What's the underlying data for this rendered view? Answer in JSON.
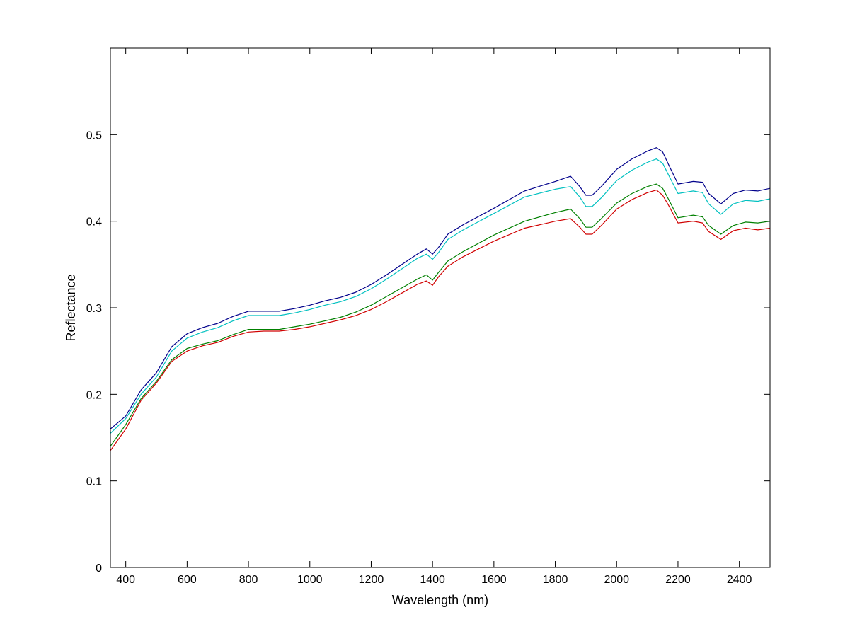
{
  "chart_data": {
    "type": "line",
    "title": "",
    "xlabel": "Wavelength (nm)",
    "ylabel": "Reflectance",
    "xlim": [
      350,
      2500
    ],
    "ylim": [
      0,
      0.6
    ],
    "x_ticks": [
      400,
      600,
      800,
      1000,
      1200,
      1400,
      1600,
      1800,
      2000,
      2200,
      2400
    ],
    "x_tick_labels": [
      "400",
      "600",
      "800",
      "1000",
      "1200",
      "1400",
      "1600",
      "1800",
      "2000",
      "2200",
      "2400"
    ],
    "y_ticks": [
      0,
      0.1,
      0.2,
      0.3,
      0.4,
      0.5
    ],
    "y_tick_labels": [
      "0",
      "0.1",
      "0.2",
      "0.3",
      "0.4",
      "0.5"
    ],
    "grid": false,
    "legend": "none",
    "x": [
      350,
      400,
      450,
      500,
      550,
      600,
      650,
      700,
      750,
      800,
      850,
      900,
      950,
      1000,
      1050,
      1100,
      1150,
      1200,
      1250,
      1300,
      1350,
      1380,
      1400,
      1420,
      1450,
      1500,
      1600,
      1700,
      1800,
      1850,
      1880,
      1900,
      1920,
      1950,
      2000,
      2050,
      2100,
      2130,
      2150,
      2170,
      2200,
      2250,
      2280,
      2300,
      2340,
      2380,
      2420,
      2460,
      2500
    ],
    "series": [
      {
        "color": "#00008B",
        "values": [
          0.16,
          0.175,
          0.205,
          0.225,
          0.255,
          0.27,
          0.277,
          0.282,
          0.29,
          0.296,
          0.296,
          0.296,
          0.299,
          0.303,
          0.308,
          0.312,
          0.318,
          0.327,
          0.338,
          0.35,
          0.362,
          0.368,
          0.362,
          0.37,
          0.385,
          0.396,
          0.415,
          0.435,
          0.446,
          0.452,
          0.44,
          0.43,
          0.43,
          0.44,
          0.46,
          0.472,
          0.481,
          0.485,
          0.48,
          0.465,
          0.443,
          0.446,
          0.445,
          0.432,
          0.42,
          0.432,
          0.436,
          0.435,
          0.438
        ]
      },
      {
        "color": "#00C0C0",
        "values": [
          0.155,
          0.172,
          0.2,
          0.22,
          0.25,
          0.265,
          0.272,
          0.277,
          0.285,
          0.291,
          0.291,
          0.291,
          0.294,
          0.298,
          0.303,
          0.307,
          0.313,
          0.322,
          0.333,
          0.345,
          0.357,
          0.362,
          0.356,
          0.364,
          0.379,
          0.39,
          0.409,
          0.428,
          0.437,
          0.44,
          0.428,
          0.417,
          0.417,
          0.427,
          0.447,
          0.459,
          0.468,
          0.472,
          0.467,
          0.453,
          0.432,
          0.435,
          0.433,
          0.42,
          0.408,
          0.42,
          0.424,
          0.423,
          0.426
        ]
      },
      {
        "color": "#008000",
        "values": [
          0.14,
          0.165,
          0.195,
          0.215,
          0.24,
          0.253,
          0.258,
          0.262,
          0.269,
          0.275,
          0.275,
          0.275,
          0.278,
          0.281,
          0.285,
          0.289,
          0.295,
          0.303,
          0.313,
          0.323,
          0.333,
          0.338,
          0.332,
          0.341,
          0.354,
          0.365,
          0.384,
          0.4,
          0.41,
          0.414,
          0.403,
          0.393,
          0.393,
          0.403,
          0.421,
          0.432,
          0.44,
          0.443,
          0.438,
          0.425,
          0.404,
          0.407,
          0.405,
          0.395,
          0.385,
          0.395,
          0.399,
          0.398,
          0.4
        ]
      },
      {
        "color": "#D00000",
        "values": [
          0.135,
          0.16,
          0.193,
          0.213,
          0.238,
          0.25,
          0.256,
          0.26,
          0.267,
          0.272,
          0.273,
          0.273,
          0.275,
          0.278,
          0.282,
          0.286,
          0.291,
          0.298,
          0.307,
          0.317,
          0.327,
          0.331,
          0.326,
          0.336,
          0.348,
          0.359,
          0.377,
          0.392,
          0.4,
          0.403,
          0.393,
          0.385,
          0.385,
          0.395,
          0.414,
          0.425,
          0.433,
          0.436,
          0.43,
          0.418,
          0.398,
          0.4,
          0.398,
          0.388,
          0.379,
          0.389,
          0.392,
          0.39,
          0.392
        ]
      }
    ]
  }
}
